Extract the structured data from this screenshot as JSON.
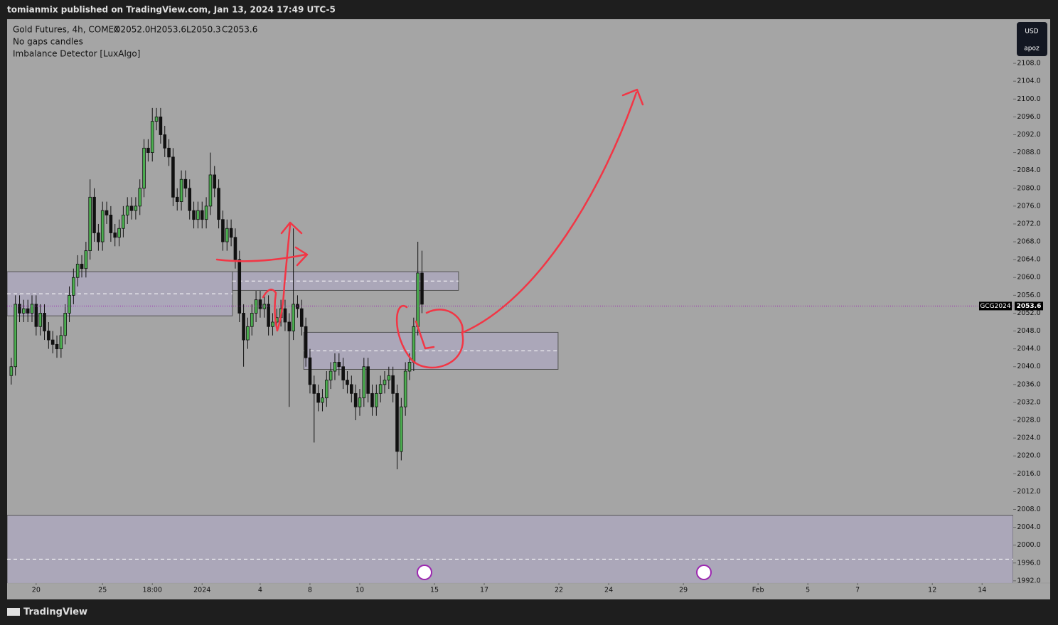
{
  "header": "tomianmix published on TradingView.com, Jan 13, 2024 17:49 UTC-5",
  "footer": "TradingView",
  "chart_data": {
    "type": "candlestick",
    "symbol": "Gold Futures, 4h, COMEX",
    "ohlc_labels": [
      "O2052.0",
      "H2053.6",
      "L2050.3",
      "C2053.6"
    ],
    "indicators": [
      "No gaps candles",
      "Imbalance Detector [LuxAlgo]"
    ],
    "currency": "USD",
    "unit_label": "apoz",
    "ticker": "GCG2024",
    "last_price": 2053.6,
    "up_color": "#4caf50",
    "down_color": "#111111",
    "xlim": [
      -7,
      235.5
    ],
    "ylim": [
      1991.5,
      2117.9
    ],
    "xticks": [
      {
        "value": 0,
        "label": "20"
      },
      {
        "value": 16,
        "label": "25"
      },
      {
        "value": 28,
        "label": "18:00"
      },
      {
        "value": 40,
        "label": "2024"
      },
      {
        "value": 54,
        "label": "4"
      },
      {
        "value": 66,
        "label": "8"
      },
      {
        "value": 78,
        "label": "10"
      },
      {
        "value": 96,
        "label": "15"
      },
      {
        "value": 108,
        "label": "17"
      },
      {
        "value": 126,
        "label": "22"
      },
      {
        "value": 138,
        "label": "24"
      },
      {
        "value": 156,
        "label": "29"
      },
      {
        "value": 174,
        "label": "Feb"
      },
      {
        "value": 186,
        "label": "5"
      },
      {
        "value": 198,
        "label": "7"
      },
      {
        "value": 216,
        "label": "12"
      },
      {
        "value": 228,
        "label": "14"
      }
    ],
    "yticks": [
      {
        "value": 1992,
        "label": "1992.0"
      },
      {
        "value": 1996,
        "label": "1996.0"
      },
      {
        "value": 2000,
        "label": "2000.0"
      },
      {
        "value": 2004,
        "label": "2004.0"
      },
      {
        "value": 2008,
        "label": "2008.0"
      },
      {
        "value": 2012,
        "label": "2012.0"
      },
      {
        "value": 2016,
        "label": "2016.0"
      },
      {
        "value": 2020,
        "label": "2020.0"
      },
      {
        "value": 2024,
        "label": "2024.0"
      },
      {
        "value": 2028,
        "label": "2028.0"
      },
      {
        "value": 2032,
        "label": "2032.0"
      },
      {
        "value": 2036,
        "label": "2036.0"
      },
      {
        "value": 2040,
        "label": "2040.0"
      },
      {
        "value": 2044,
        "label": "2044.0"
      },
      {
        "value": 2048,
        "label": "2048.0"
      },
      {
        "value": 2052,
        "label": "2052.0"
      },
      {
        "value": 2056,
        "label": "2056.0"
      },
      {
        "value": 2060,
        "label": "2060.0"
      },
      {
        "value": 2064,
        "label": "2064.0"
      },
      {
        "value": 2068,
        "label": "2068.0"
      },
      {
        "value": 2072,
        "label": "2072.0"
      },
      {
        "value": 2076,
        "label": "2076.0"
      },
      {
        "value": 2080,
        "label": "2080.0"
      },
      {
        "value": 2084,
        "label": "2084.0"
      },
      {
        "value": 2088,
        "label": "2088.0"
      },
      {
        "value": 2092,
        "label": "2092.0"
      },
      {
        "value": 2096,
        "label": "2096.0"
      },
      {
        "value": 2100,
        "label": "2100.0"
      },
      {
        "value": 2104,
        "label": "2104.0"
      },
      {
        "value": 2108,
        "label": "2108.0"
      }
    ],
    "zones": [
      {
        "x": [
          -7,
          47.3
        ],
        "y": [
          2051.4,
          2061.3
        ]
      },
      {
        "x": [
          47.3,
          101.8
        ],
        "y": [
          2057.1,
          2061.3
        ]
      },
      {
        "x": [
          64.5,
          125.8
        ],
        "y": [
          2039.4,
          2047.7
        ]
      },
      {
        "x": [
          -7,
          235.5
        ],
        "y": [
          1987,
          2006.7
        ]
      }
    ],
    "candles": {
      "x": [
        -6,
        -5,
        -4,
        -3,
        -2,
        -1,
        0,
        1,
        2,
        3,
        4,
        5,
        6,
        7,
        8,
        9,
        10,
        11,
        12,
        13,
        14,
        15,
        16,
        17,
        18,
        19,
        20,
        21,
        22,
        23,
        24,
        25,
        26,
        27,
        28,
        29,
        30,
        31,
        32,
        33,
        34,
        35,
        36,
        37,
        38,
        39,
        40,
        41,
        42,
        43,
        44,
        45,
        46,
        47,
        48,
        49,
        50,
        51,
        52,
        53,
        54,
        55,
        56,
        57,
        58,
        59,
        60,
        61,
        62,
        63,
        64,
        65,
        66,
        67,
        68,
        69,
        70,
        71,
        72,
        73,
        74,
        75,
        76,
        77,
        78,
        79,
        80,
        81,
        82,
        83,
        84,
        85,
        86,
        87,
        88,
        89,
        90,
        91,
        92,
        93
      ],
      "open": [
        2038,
        2040,
        2054,
        2052,
        2053,
        2052,
        2054,
        2049,
        2052,
        2048,
        2046,
        2045,
        2044,
        2047,
        2052,
        2056,
        2060,
        2063,
        2062,
        2066,
        2078,
        2070,
        2068,
        2075,
        2074,
        2070,
        2069,
        2071,
        2074,
        2076,
        2075,
        2076,
        2080,
        2089,
        2088,
        2095,
        2096,
        2092,
        2089,
        2087,
        2078,
        2077,
        2082,
        2080,
        2075,
        2073,
        2075,
        2073,
        2076,
        2083,
        2080,
        2073,
        2068,
        2071,
        2069,
        2064,
        2052,
        2046,
        2049,
        2052,
        2055,
        2053,
        2054,
        2049,
        2050,
        2051,
        2053,
        2050,
        2048,
        2054,
        2053,
        2049,
        2042,
        2036,
        2034,
        2032,
        2033,
        2037,
        2039,
        2041,
        2040,
        2037,
        2036,
        2034,
        2031,
        2033,
        2040,
        2034,
        2031,
        2034,
        2036,
        2037,
        2038,
        2034,
        2021,
        2031,
        2039,
        2041,
        2049,
        2061
      ],
      "high": [
        2042,
        2056,
        2056,
        2055,
        2055,
        2056,
        2056,
        2054,
        2054,
        2050,
        2048,
        2047,
        2049,
        2054,
        2058,
        2062,
        2065,
        2065,
        2068,
        2082,
        2080,
        2072,
        2077,
        2077,
        2076,
        2072,
        2073,
        2076,
        2078,
        2078,
        2078,
        2082,
        2091,
        2091,
        2098,
        2098,
        2098,
        2094,
        2091,
        2089,
        2080,
        2084,
        2084,
        2082,
        2077,
        2077,
        2077,
        2078,
        2088,
        2085,
        2082,
        2075,
        2073,
        2073,
        2071,
        2066,
        2054,
        2051,
        2054,
        2057,
        2057,
        2056,
        2056,
        2052,
        2053,
        2055,
        2055,
        2052,
        2071,
        2056,
        2055,
        2051,
        2044,
        2038,
        2036,
        2035,
        2039,
        2041,
        2043,
        2043,
        2042,
        2039,
        2038,
        2036,
        2035,
        2042,
        2042,
        2036,
        2036,
        2038,
        2039,
        2040,
        2040,
        2036,
        2033,
        2041,
        2043,
        2051,
        2068,
        2066
      ],
      "low": [
        2036,
        2038,
        2050,
        2050,
        2050,
        2050,
        2047,
        2047,
        2046,
        2044,
        2043,
        2042,
        2042,
        2045,
        2050,
        2054,
        2058,
        2060,
        2060,
        2064,
        2068,
        2066,
        2066,
        2072,
        2068,
        2067,
        2067,
        2069,
        2072,
        2073,
        2073,
        2074,
        2078,
        2086,
        2086,
        2093,
        2090,
        2087,
        2085,
        2076,
        2075,
        2075,
        2078,
        2073,
        2071,
        2071,
        2071,
        2071,
        2074,
        2078,
        2071,
        2066,
        2066,
        2067,
        2062,
        2050,
        2040,
        2044,
        2047,
        2050,
        2051,
        2051,
        2047,
        2047,
        2048,
        2049,
        2048,
        2031,
        2046,
        2051,
        2047,
        2040,
        2034,
        2023,
        2030,
        2030,
        2031,
        2035,
        2037,
        2038,
        2035,
        2034,
        2032,
        2028,
        2029,
        2031,
        2032,
        2029,
        2029,
        2032,
        2034,
        2035,
        2032,
        2017,
        2019,
        2029,
        2037,
        2039,
        2047,
        2052
      ],
      "close": [
        2040,
        2054,
        2052,
        2053,
        2052,
        2054,
        2049,
        2052,
        2048,
        2046,
        2045,
        2044,
        2047,
        2052,
        2056,
        2060,
        2063,
        2062,
        2066,
        2078,
        2070,
        2068,
        2075,
        2074,
        2070,
        2069,
        2071,
        2074,
        2076,
        2075,
        2076,
        2080,
        2089,
        2088,
        2095,
        2096,
        2092,
        2089,
        2087,
        2078,
        2077,
        2082,
        2080,
        2075,
        2073,
        2075,
        2073,
        2076,
        2083,
        2080,
        2073,
        2068,
        2071,
        2069,
        2064,
        2052,
        2046,
        2049,
        2052,
        2055,
        2053,
        2054,
        2049,
        2050,
        2051,
        2053,
        2050,
        2048,
        2054,
        2053,
        2049,
        2042,
        2036,
        2034,
        2032,
        2033,
        2037,
        2039,
        2041,
        2040,
        2037,
        2036,
        2034,
        2031,
        2033,
        2040,
        2034,
        2031,
        2034,
        2036,
        2037,
        2038,
        2034,
        2021,
        2031,
        2039,
        2041,
        2049,
        2061,
        2054
      ]
    }
  }
}
